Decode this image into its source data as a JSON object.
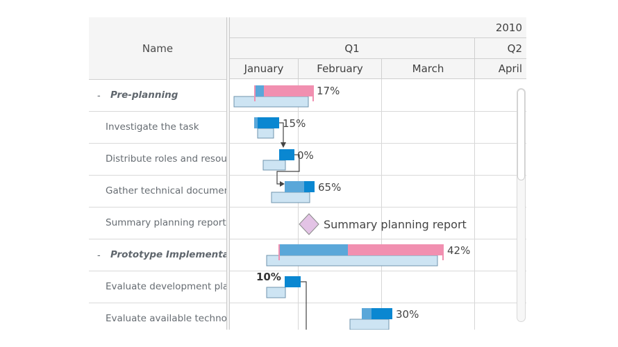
{
  "header": {
    "name_column": "Name",
    "year": "2010",
    "quarters": [
      "Q1",
      "Q2"
    ],
    "months": [
      "January",
      "February",
      "March",
      "April"
    ]
  },
  "rows": [
    {
      "type": "group",
      "label": "Pre-planning",
      "toggle": "-",
      "progress": 0.17,
      "progress_label": "17%"
    },
    {
      "type": "task",
      "label": "Investigate the task",
      "progress": 0.15,
      "progress_label": "15%"
    },
    {
      "type": "task",
      "label": "Distribute roles and resources",
      "progress": 0.0,
      "progress_label": "0%"
    },
    {
      "type": "task",
      "label": "Gather technical documentation",
      "progress": 0.65,
      "progress_label": "65%"
    },
    {
      "type": "milestone",
      "label": "Summary planning report",
      "milestone_label": "Summary planning report"
    },
    {
      "type": "group",
      "label": "Prototype Implementation",
      "toggle": "-",
      "progress": 0.42,
      "progress_label": "42%"
    },
    {
      "type": "task",
      "label": "Evaluate development platforms",
      "progress": 0.1,
      "progress_label": "10%"
    },
    {
      "type": "task",
      "label": "Evaluate available technologies",
      "progress": 0.3,
      "progress_label": "30%"
    }
  ],
  "colors": {
    "actual_bar": "#5aa7d9",
    "progress_fill": "#0a87d1",
    "group_progress": "#f18fb0",
    "baseline": "#cde4f3",
    "baseline_border": "#6f93ad",
    "milestone_fill": "#e3c3e5",
    "milestone_border": "#8a8a8a",
    "grid_line": "#d6d6d6"
  }
}
